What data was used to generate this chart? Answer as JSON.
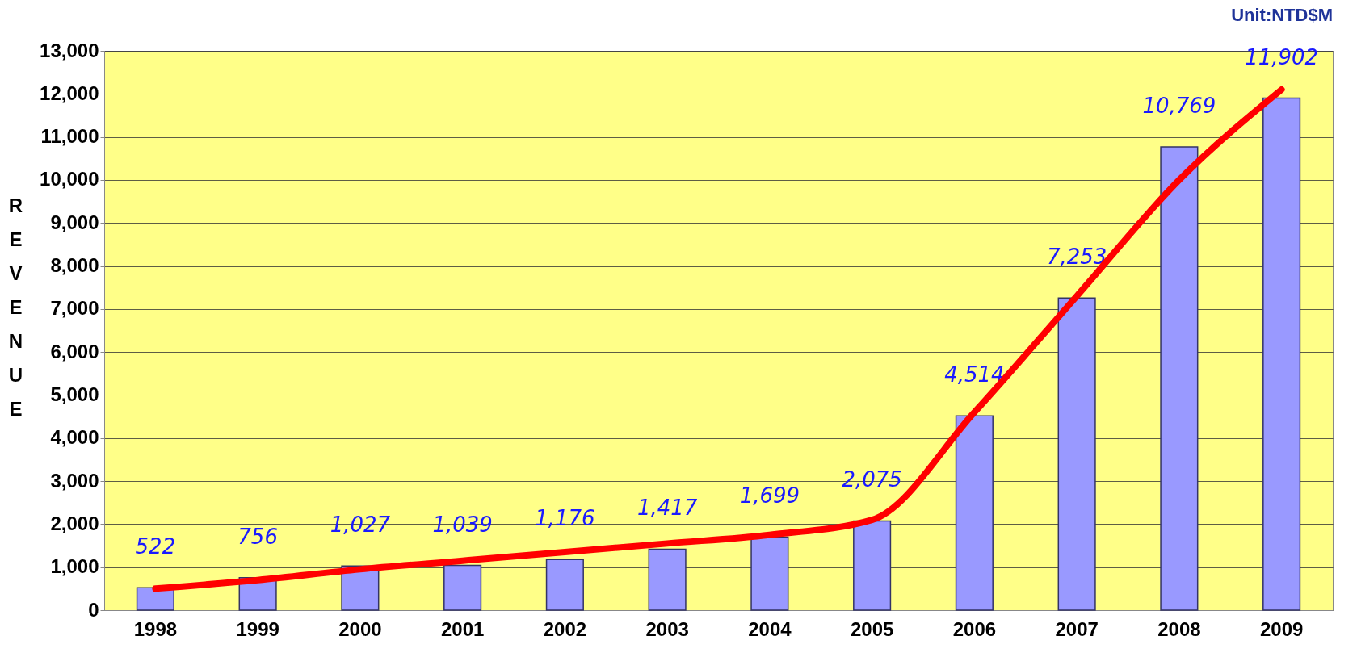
{
  "chart_data": {
    "type": "bar",
    "categories": [
      "1998",
      "1999",
      "2000",
      "2001",
      "2002",
      "2003",
      "2004",
      "2005",
      "2006",
      "2007",
      "2008",
      "2009"
    ],
    "series": [
      {
        "color": "#9999ff",
        "values": [
          522,
          756,
          1027,
          1039,
          1176,
          1417,
          1699,
          2075,
          4514,
          7253,
          10769,
          11902
        ],
        "value_labels": [
          "522",
          "756",
          "1,027",
          "1,039",
          "1,176",
          "1,417",
          "1,699",
          "2,075",
          "4,514",
          "7,253",
          "10,769",
          "11,902"
        ]
      },
      {
        "type": "line",
        "color": "#ff0000",
        "line_style": "solid",
        "values": [
          500,
          700,
          950,
          1150,
          1350,
          1550,
          1750,
          2100,
          4600,
          7300,
          10000,
          12100
        ]
      }
    ],
    "ylabel": "REVENUE",
    "ylim": [
      0,
      13000
    ],
    "yticks": [
      0,
      {
        "value": 1000,
        "label": "1,000"
      },
      {
        "value": 2000,
        "label": "2,000"
      },
      {
        "value": 3000,
        "label": "3,000"
      },
      {
        "value": 4000,
        "label": "4,000"
      },
      {
        "value": 5000,
        "label": "5,000"
      },
      {
        "value": 6000,
        "label": "6,000"
      },
      {
        "value": 7000,
        "label": "7,000"
      },
      {
        "value": 8000,
        "label": "8,000"
      },
      {
        "value": 9000,
        "label": "9,000"
      },
      {
        "value": 10000,
        "label": "10,000"
      },
      {
        "value": 11000,
        "label": "11,000"
      },
      {
        "value": 12000,
        "label": "12,000"
      },
      {
        "value": 13000,
        "label": "13,000"
      }
    ],
    "grid": "y",
    "legend": false,
    "annotations": [
      "Unit:NTD$M"
    ]
  }
}
